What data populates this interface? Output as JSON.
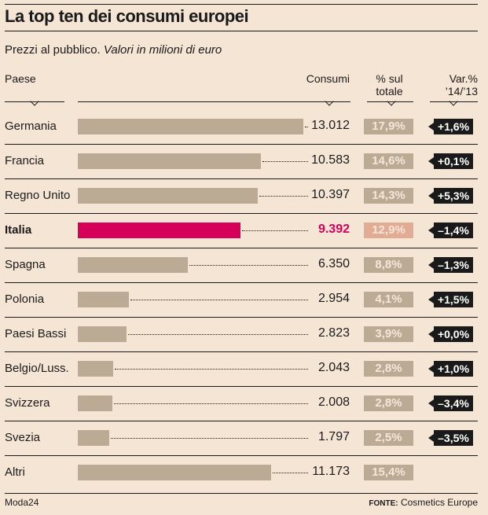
{
  "title": "La top ten dei consumi europei",
  "subtitle": {
    "main": "Prezzi al pubblico.",
    "italic": "Valori in milioni di euro"
  },
  "headers": {
    "country": "Paese",
    "consumption": "Consumi",
    "share": "% sul totale",
    "change": "Var.% ’14/’13"
  },
  "colors": {
    "bar": "#bcab94",
    "highlight": "#d6005b",
    "highlight_pct": "#e2ab93",
    "change_box": "#1a1a1a",
    "background": "#f5e5d5"
  },
  "chart_data": {
    "type": "bar",
    "orientation": "horizontal",
    "title": "La top ten dei consumi europei",
    "unit": "milioni di euro",
    "categories": [
      "Germania",
      "Francia",
      "Regno Unito",
      "Italia",
      "Spagna",
      "Polonia",
      "Paesi Bassi",
      "Belgio/Luss.",
      "Svizzera",
      "Svezia",
      "Altri"
    ],
    "values": [
      13012,
      10583,
      10397,
      9392,
      6350,
      2954,
      2823,
      2043,
      2008,
      1797,
      11173
    ],
    "value_labels": [
      "13.012",
      "10.583",
      "10.397",
      "9.392",
      "6.350",
      "2.954",
      "2.823",
      "2.043",
      "2.008",
      "1.797",
      "11.173"
    ],
    "share_labels": [
      "17,9%",
      "14,6%",
      "14,3%",
      "12,9%",
      "8,8%",
      "4,1%",
      "3,9%",
      "2,8%",
      "2,8%",
      "2,5%",
      "15,4%"
    ],
    "change_labels": [
      "+1,6%",
      "+0,1%",
      "+5,3%",
      "–1,4%",
      "–1,3%",
      "+1,5%",
      "+0,0%",
      "+1,0%",
      "–3,4%",
      "–3,5%",
      ""
    ],
    "highlight": "Italia"
  },
  "footer": {
    "left": "Moda24",
    "source_label": "FONTE:",
    "source": "Cosmetics Europe"
  }
}
